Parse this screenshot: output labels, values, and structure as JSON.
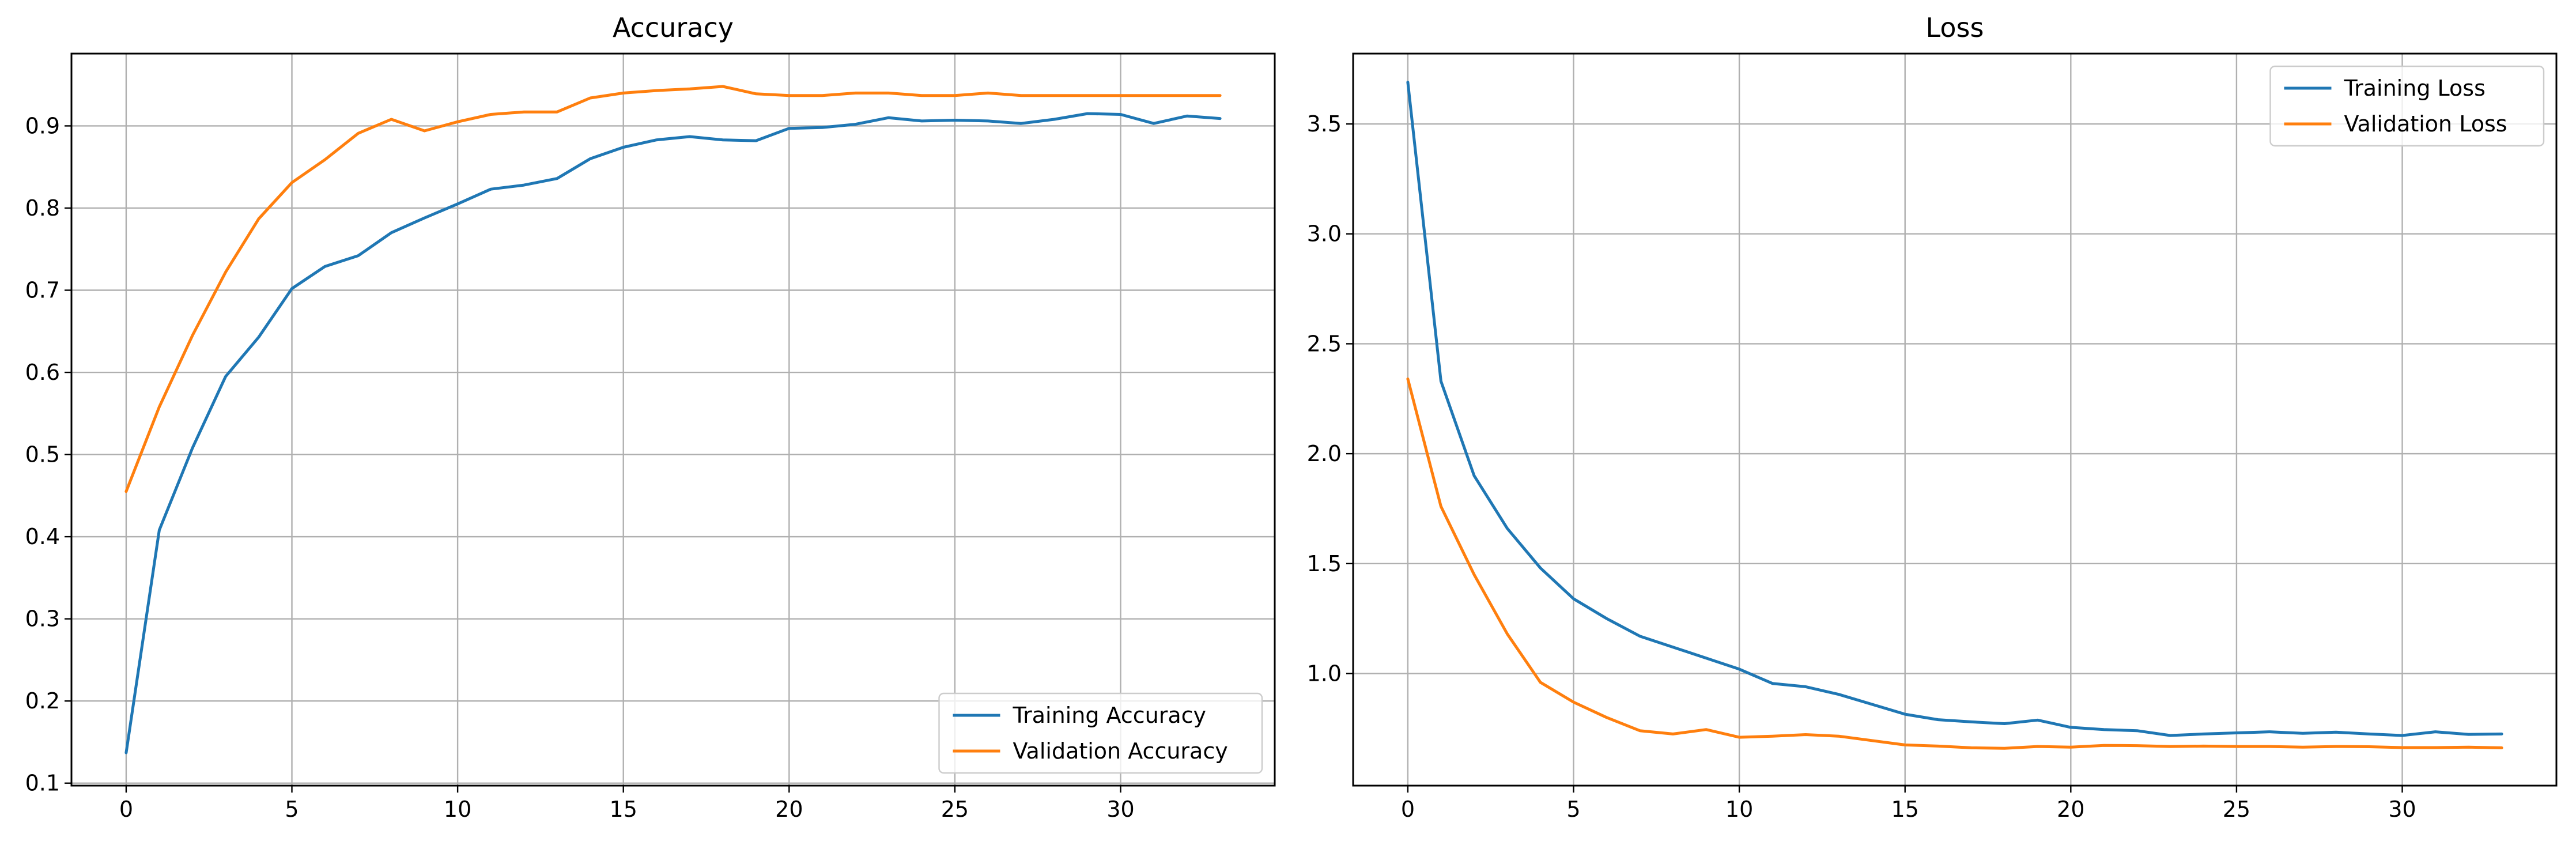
{
  "chart_data": [
    {
      "type": "line",
      "title": "Accuracy",
      "xlabel": "",
      "ylabel": "",
      "xlim": [
        -1.65,
        34.65
      ],
      "ylim": [
        0.097,
        0.988
      ],
      "xticks": [
        0,
        5,
        10,
        15,
        20,
        25,
        30
      ],
      "yticks": [
        0.1,
        0.2,
        0.3,
        0.4,
        0.5,
        0.6,
        0.7,
        0.8,
        0.9
      ],
      "grid": true,
      "legend_position": "lower right",
      "x": [
        0,
        1,
        2,
        3,
        4,
        5,
        6,
        7,
        8,
        9,
        10,
        11,
        12,
        13,
        14,
        15,
        16,
        17,
        18,
        19,
        20,
        21,
        22,
        23,
        24,
        25,
        26,
        27,
        28,
        29,
        30,
        31,
        32,
        33
      ],
      "series": [
        {
          "name": "Training Accuracy",
          "color": "#1f77b4",
          "values": [
            0.137,
            0.408,
            0.508,
            0.595,
            0.643,
            0.702,
            0.729,
            0.742,
            0.77,
            0.788,
            0.805,
            0.823,
            0.828,
            0.836,
            0.86,
            0.874,
            0.883,
            0.887,
            0.883,
            0.882,
            0.897,
            0.898,
            0.902,
            0.91,
            0.906,
            0.907,
            0.906,
            0.903,
            0.908,
            0.915,
            0.914,
            0.903,
            0.912,
            0.909
          ]
        },
        {
          "name": "Validation Accuracy",
          "color": "#ff7f0e",
          "values": [
            0.455,
            0.558,
            0.645,
            0.722,
            0.787,
            0.831,
            0.859,
            0.891,
            0.908,
            0.894,
            0.905,
            0.914,
            0.917,
            0.917,
            0.934,
            0.94,
            0.943,
            0.945,
            0.948,
            0.939,
            0.937,
            0.937,
            0.94,
            0.94,
            0.937,
            0.937,
            0.94,
            0.937,
            0.937,
            0.937,
            0.937,
            0.937,
            0.937,
            0.937
          ]
        }
      ]
    },
    {
      "type": "line",
      "title": "Loss",
      "xlabel": "",
      "ylabel": "",
      "xlim": [
        -1.65,
        34.65
      ],
      "ylim": [
        0.49,
        3.82
      ],
      "xticks": [
        0,
        5,
        10,
        15,
        20,
        25,
        30
      ],
      "yticks": [
        1.0,
        1.5,
        2.0,
        2.5,
        3.0,
        3.5
      ],
      "ytick_labels": [
        "1.0",
        "1.5",
        "2.0",
        "2.5",
        "3.0",
        "3.5"
      ],
      "grid": true,
      "legend_position": "upper right",
      "x": [
        0,
        1,
        2,
        3,
        4,
        5,
        6,
        7,
        8,
        9,
        10,
        11,
        12,
        13,
        14,
        15,
        16,
        17,
        18,
        19,
        20,
        21,
        22,
        23,
        24,
        25,
        26,
        27,
        28,
        29,
        30,
        31,
        32,
        33
      ],
      "series": [
        {
          "name": "Training Loss",
          "color": "#1f77b4",
          "values": [
            3.69,
            2.33,
            1.9,
            1.66,
            1.48,
            1.34,
            1.25,
            1.17,
            1.12,
            1.07,
            1.02,
            0.955,
            0.94,
            0.905,
            0.86,
            0.815,
            0.79,
            0.78,
            0.772,
            0.788,
            0.755,
            0.745,
            0.74,
            0.718,
            0.725,
            0.73,
            0.735,
            0.728,
            0.733,
            0.725,
            0.718,
            0.735,
            0.723,
            0.725
          ]
        },
        {
          "name": "Validation Loss",
          "color": "#ff7f0e",
          "values": [
            2.34,
            1.76,
            1.45,
            1.18,
            0.96,
            0.87,
            0.8,
            0.74,
            0.725,
            0.745,
            0.71,
            0.715,
            0.722,
            0.715,
            0.695,
            0.675,
            0.67,
            0.662,
            0.66,
            0.668,
            0.665,
            0.673,
            0.672,
            0.668,
            0.67,
            0.668,
            0.668,
            0.665,
            0.668,
            0.667,
            0.663,
            0.663,
            0.665,
            0.662
          ]
        }
      ]
    }
  ]
}
